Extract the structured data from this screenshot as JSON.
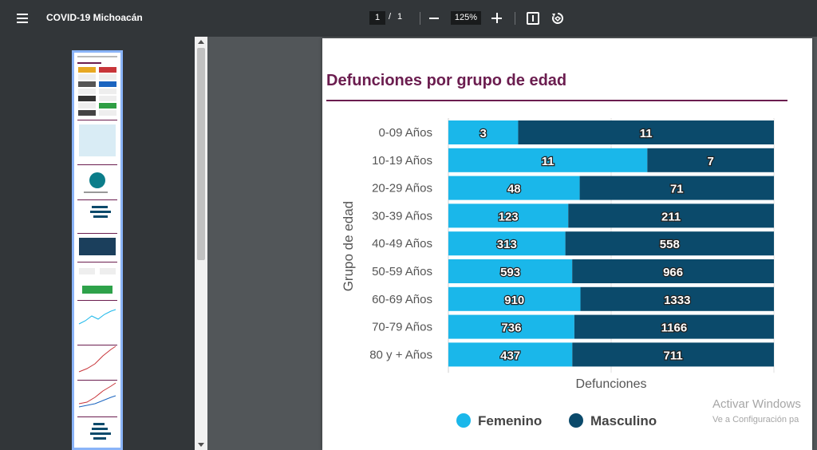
{
  "toolbar": {
    "title": "COVID-19 Michoacán",
    "page_current": "1",
    "page_separator": "/",
    "page_total": "1",
    "zoom": "125%"
  },
  "chart_data": {
    "type": "bar",
    "orientation": "horizontal",
    "stacking": "fill",
    "title": "Defunciones por grupo de edad",
    "xlabel": "Defunciones",
    "ylabel": "Grupo de edad",
    "categories": [
      "0-09 Años",
      "10-19 Años",
      "20-29 Años",
      "30-39 Años",
      "40-49 Años",
      "50-59 Años",
      "60-69 Años",
      "70-79 Años",
      "80 y + Años"
    ],
    "series": [
      {
        "name": "Femenino",
        "color": "#1ab7ea",
        "values": [
          3,
          11,
          48,
          123,
          313,
          593,
          910,
          736,
          437
        ]
      },
      {
        "name": "Masculino",
        "color": "#0b4a6b",
        "values": [
          11,
          7,
          71,
          211,
          558,
          966,
          1333,
          1166,
          711
        ]
      }
    ],
    "legend_position": "bottom",
    "grid": true
  },
  "watermark": {
    "line1": "Activar Windows",
    "line2": "Ve a Configuración pa"
  }
}
